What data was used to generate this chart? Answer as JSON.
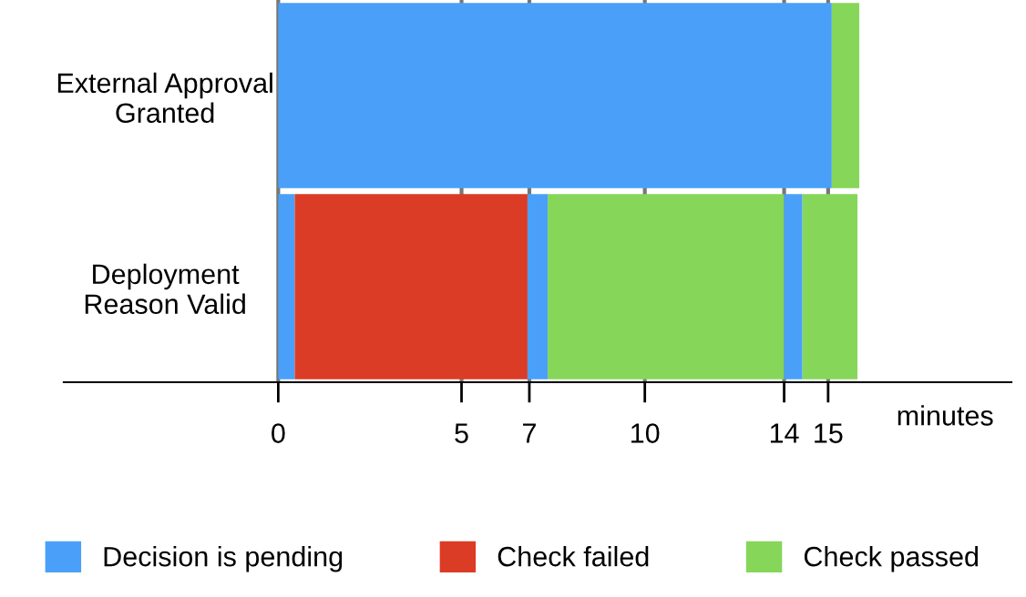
{
  "chart_data": {
    "type": "bar",
    "orientation": "horizontal",
    "stacked": true,
    "categories": [
      "External Approval\nGranted",
      "Deployment\nReason Valid"
    ],
    "series": [
      {
        "name": "Decision is pending",
        "color": "#4aa0f8",
        "values": [
          15.1,
          0.45
        ]
      },
      {
        "name": "Check failed",
        "color": "#db3c26",
        "values": [
          0,
          6.35
        ]
      },
      {
        "color": "#4aa0f8",
        "values": [
          0,
          0.55
        ]
      },
      {
        "name": "Check passed",
        "color": "#86d65a",
        "values": [
          0.75,
          6.45
        ]
      },
      {
        "color": "#4aa0f8",
        "values": [
          null,
          0.5
        ]
      },
      {
        "color": "#86d65a",
        "values": [
          null,
          1.5
        ]
      }
    ],
    "xlabel": "minutes",
    "xlim": [
      -5.85,
      20
    ],
    "xticks": [
      0,
      5,
      {
        "value": 6.85,
        "label": "7"
      },
      10,
      {
        "value": 13.8,
        "label": "14"
      },
      15
    ],
    "grid": "x",
    "legend": "bottom"
  }
}
